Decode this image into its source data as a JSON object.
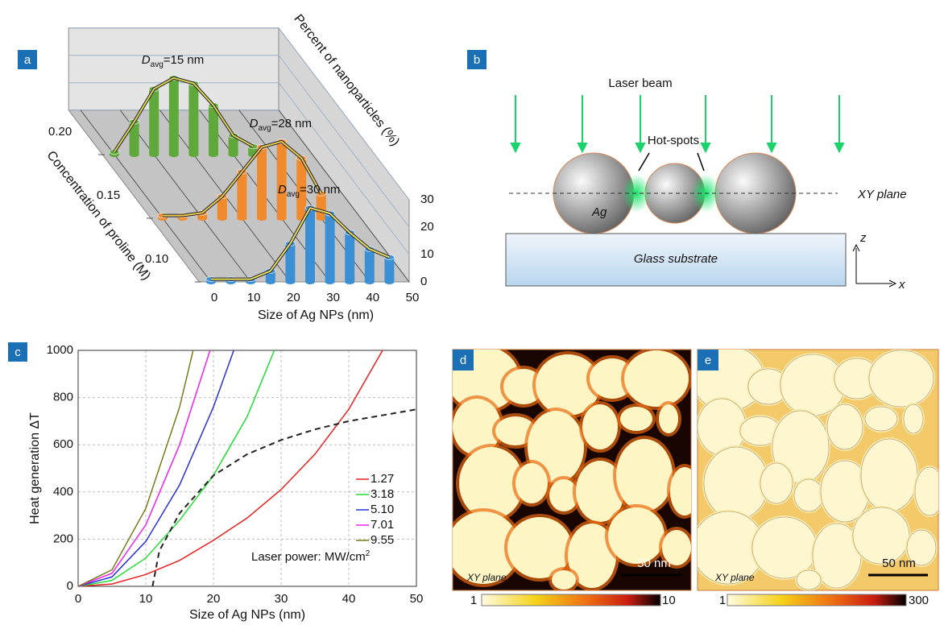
{
  "chart_data": [
    {
      "type": "bar3d",
      "label": "a",
      "xlabel": "Size of Ag NPs (nm)",
      "ylabel": "Concentration of proline (M)",
      "zlabel": "Percent of nanoparticles (%)",
      "x": [
        0,
        5,
        10,
        15,
        20,
        25,
        30,
        35,
        40,
        45
      ],
      "xlim": [
        0,
        50
      ],
      "xticks": [
        0,
        10,
        20,
        30,
        40,
        50
      ],
      "ylim": [
        0.1,
        0.2
      ],
      "yticks": [
        {
          "value": 0.1,
          "label": "0.10"
        },
        0.15,
        {
          "value": 0.2,
          "label": "0.20"
        }
      ],
      "zlim": [
        0,
        30
      ],
      "zticks": [
        0,
        10,
        20,
        30
      ],
      "series": [
        {
          "y": 0.2,
          "color": "#5fa83a",
          "curve_color": "#d8d24a",
          "values": [
            1,
            12,
            24,
            28,
            26,
            18,
            7,
            3,
            null,
            null
          ],
          "annotation": {
            "symbol": "D",
            "sub": "avg",
            "text": "=15 nm"
          }
        },
        {
          "y": 0.15,
          "color": "#f08a2c",
          "curve_color": "#e8c94a",
          "values": [
            1,
            1,
            2,
            8,
            17,
            26,
            28,
            22,
            9,
            null
          ],
          "annotation": {
            "symbol": "D",
            "sub": "avg",
            "text": "=28 nm"
          }
        },
        {
          "y": 0.1,
          "color": "#3b8fd4",
          "curve_color": "#e6dc5a",
          "values": [
            1,
            1,
            1,
            4,
            14,
            27,
            25,
            18,
            12,
            9
          ],
          "annotation": {
            "symbol": "D",
            "sub": "avg",
            "text": "=30 nm"
          }
        }
      ]
    },
    {
      "type": "line",
      "label": "c",
      "xlabel": "Size of Ag NPs (nm)",
      "ylabel": "Heat generation ΔT",
      "xlim": [
        0,
        50
      ],
      "xticks": [
        0,
        10,
        20,
        30,
        40,
        50
      ],
      "ylim": [
        0,
        1000
      ],
      "yticks": [
        0,
        200,
        400,
        600,
        800,
        1000
      ],
      "grid": true,
      "legend_title": "Laser power: MW/cm",
      "legend_title_sup": "2",
      "series": [
        {
          "name": "1.27",
          "color": "#e8201f",
          "x": [
            0,
            5,
            10,
            15,
            20,
            25,
            30,
            35,
            40,
            45
          ],
          "values": [
            0,
            10,
            50,
            110,
            195,
            290,
            410,
            560,
            750,
            1000
          ]
        },
        {
          "name": "3.18",
          "color": "#22dd33",
          "x": [
            0,
            5,
            10,
            15,
            20,
            25,
            29
          ],
          "values": [
            0,
            25,
            120,
            280,
            470,
            720,
            1000
          ]
        },
        {
          "name": "5.10",
          "color": "#2830d8",
          "x": [
            0,
            5,
            10,
            15,
            20,
            23
          ],
          "values": [
            0,
            40,
            190,
            430,
            760,
            1000
          ]
        },
        {
          "name": "7.01",
          "color": "#ee22ee",
          "x": [
            0,
            5,
            10,
            15,
            19.5
          ],
          "values": [
            0,
            55,
            260,
            600,
            1000
          ]
        },
        {
          "name": "9.55",
          "color": "#7a7a1a",
          "x": [
            0,
            5,
            10,
            15,
            17
          ],
          "values": [
            0,
            70,
            330,
            760,
            1000
          ]
        },
        {
          "color": "#222222",
          "dashed": true,
          "x": [
            11,
            12,
            15,
            20,
            25,
            30,
            35,
            40,
            45,
            50
          ],
          "values": [
            0,
            150,
            310,
            470,
            560,
            620,
            665,
            700,
            725,
            750
          ]
        }
      ]
    }
  ],
  "panel_b": {
    "label": "b",
    "laser_beam": "Laser beam",
    "hot_spots": "Hot-spots",
    "plane": "XY plane",
    "particle": "Ag",
    "substrate": "Glass substrate",
    "z_axis": "z",
    "x_axis": "x"
  },
  "panel_d": {
    "label": "d",
    "scale_bar": "50 nm",
    "plane": "XY plane",
    "colorbar_min": 1,
    "colorbar_max": 10
  },
  "panel_e": {
    "label": "e",
    "scale_bar": "50 nm",
    "plane": "XY plane",
    "colorbar_min": 1,
    "colorbar_max": 300
  }
}
